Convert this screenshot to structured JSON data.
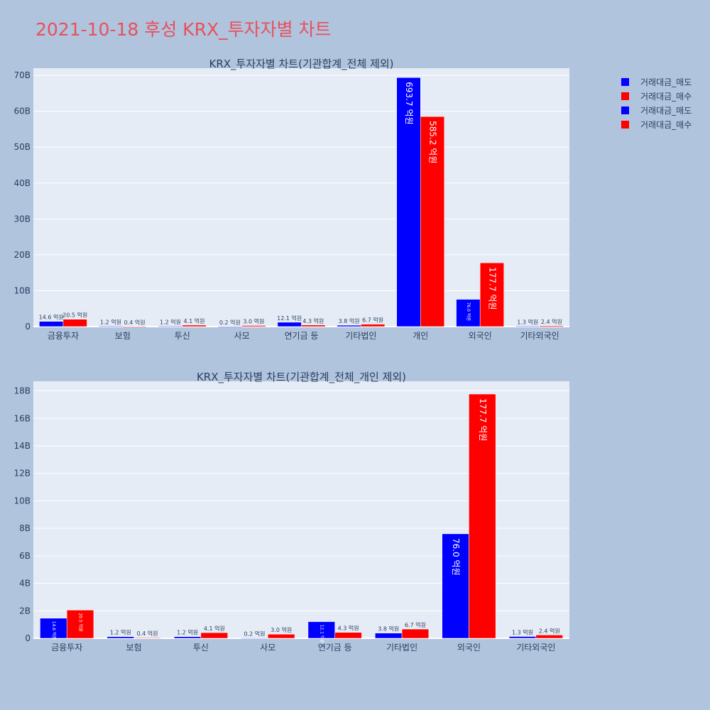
{
  "page": {
    "title": "2021-10-18 후성 KRX_투자자별 차트"
  },
  "legend": [
    {
      "label": "거래대금_매도",
      "color": "#0000ff"
    },
    {
      "label": "거래대금_매수",
      "color": "#ff0000"
    },
    {
      "label": "거래대금_매도",
      "color": "#0000ff"
    },
    {
      "label": "거래대금_매수",
      "color": "#ff0000"
    }
  ],
  "colors": {
    "sell": "#0000ff",
    "buy": "#ff0000",
    "plot_bg": "#e5ecf6",
    "page_bg": "#b0c4de",
    "title": "#e8505b"
  },
  "chart_data": [
    {
      "type": "bar",
      "title": "KRX_투자자별 차트(기관합계_전체 제외)",
      "categories": [
        "금융투자",
        "보험",
        "투신",
        "사모",
        "연기금 등",
        "기타법인",
        "개인",
        "외국인",
        "기타외국인"
      ],
      "series": [
        {
          "name": "거래대금_매도",
          "values": [
            1.46,
            0.12,
            0.12,
            0.02,
            1.21,
            0.38,
            69.37,
            7.6,
            0.13
          ],
          "labels": [
            "14.6 억원",
            "1.2 억원",
            "1.2 억원",
            "0.2 억원",
            "12.1 억원",
            "3.8 억원",
            "693.7 억원",
            "76.0 억원",
            "1.3 억원"
          ]
        },
        {
          "name": "거래대금_매수",
          "values": [
            2.05,
            0.04,
            0.41,
            0.3,
            0.43,
            0.67,
            58.52,
            17.77,
            0.24
          ],
          "labels": [
            "20.5 억원",
            "0.4 억원",
            "4.1 억원",
            "3.0 억원",
            "4.3 억원",
            "6.7 억원",
            "585.2 억원",
            "177.7 억원",
            "2.4 억원"
          ]
        }
      ],
      "ylim": [
        0,
        72
      ],
      "yticks": [
        0,
        10,
        20,
        30,
        40,
        50,
        60,
        70
      ],
      "yticklabels": [
        "0",
        "10B",
        "20B",
        "30B",
        "40B",
        "50B",
        "60B",
        "70B"
      ],
      "grid": true,
      "legend": "right"
    },
    {
      "type": "bar",
      "title": "KRX_투자자별 차트(기관합계_전체_개인 제외)",
      "categories": [
        "금융투자",
        "보험",
        "투신",
        "사모",
        "연기금 등",
        "기타법인",
        "외국인",
        "기타외국인"
      ],
      "series": [
        {
          "name": "거래대금_매도",
          "values": [
            1.46,
            0.12,
            0.12,
            0.02,
            1.21,
            0.38,
            7.6,
            0.13
          ],
          "labels": [
            "14.6 억원",
            "1.2 억원",
            "1.2 억원",
            "0.2 억원",
            "12.1 억원",
            "3.8 억원",
            "76.0 억원",
            "1.3 억원"
          ]
        },
        {
          "name": "거래대금_매수",
          "values": [
            2.05,
            0.04,
            0.41,
            0.3,
            0.43,
            0.67,
            17.77,
            0.24
          ],
          "labels": [
            "20.5 억원",
            "0.4 억원",
            "4.1 억원",
            "3.0 억원",
            "4.3 억원",
            "6.7 억원",
            "177.7 억원",
            "2.4 억원"
          ]
        }
      ],
      "ylim": [
        0,
        18.7
      ],
      "yticks": [
        0,
        2,
        4,
        6,
        8,
        10,
        12,
        14,
        16,
        18
      ],
      "yticklabels": [
        "0",
        "2B",
        "4B",
        "6B",
        "8B",
        "10B",
        "12B",
        "14B",
        "16B",
        "18B"
      ],
      "grid": true,
      "legend": "right"
    }
  ]
}
